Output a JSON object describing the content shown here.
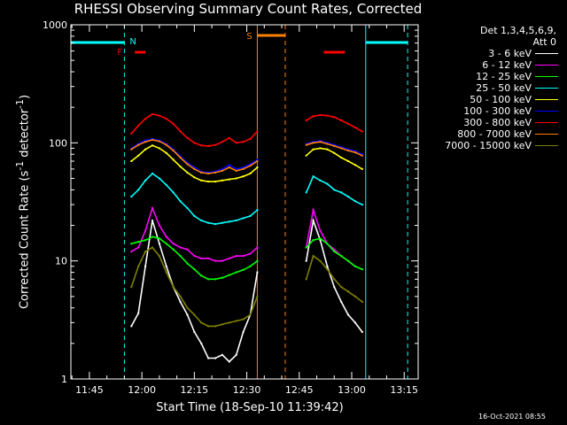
{
  "chart_data": {
    "type": "line",
    "title": "RHESSI Observing Summary Count Rates, Corrected",
    "xlabel": "Start Time (18-Sep-10 11:39:42)",
    "ylabel": "Corrected Count Rate (s^-1 detector^-1)",
    "y_scale": "log",
    "ylim": [
      1,
      1000
    ],
    "xlim": [
      "11:39:42",
      "13:19:00"
    ],
    "x_ticks": [
      "11:45",
      "12:00",
      "12:15",
      "12:30",
      "12:45",
      "13:00",
      "13:15"
    ],
    "y_ticks": [
      "1",
      "10",
      "100",
      "1000"
    ],
    "legend": {
      "header": [
        "Det 1,3,4,5,6,9,",
        "Att 0"
      ],
      "placement": "right"
    },
    "series": [
      {
        "name": "3 - 6 keV",
        "color": "#ffffff",
        "x": [
          "11:57",
          "11:59",
          "12:01",
          "12:03",
          "12:05",
          "12:07",
          "12:09",
          "12:11",
          "12:13",
          "12:15",
          "12:17",
          "12:19",
          "12:21",
          "12:23",
          "12:25",
          "12:27",
          "12:29",
          "12:31",
          "12:33",
          "12:47",
          "12:49",
          "12:51",
          "12:53",
          "12:55",
          "12:57",
          "12:59",
          "13:01",
          "13:03"
        ],
        "y": [
          2.8,
          3.6,
          9,
          22,
          14,
          9,
          6,
          4.5,
          3.5,
          2.5,
          2,
          1.5,
          1.5,
          1.6,
          1.4,
          1.6,
          2.5,
          3.5,
          8,
          10,
          22,
          15,
          9,
          6,
          4.5,
          3.5,
          3,
          2.5
        ]
      },
      {
        "name": "6 - 12 keV",
        "color": "#ff00ff",
        "x": [
          "11:57",
          "11:59",
          "12:01",
          "12:03",
          "12:05",
          "12:07",
          "12:09",
          "12:11",
          "12:13",
          "12:15",
          "12:17",
          "12:19",
          "12:21",
          "12:23",
          "12:25",
          "12:27",
          "12:29",
          "12:31",
          "12:33",
          "12:47",
          "12:49",
          "12:51",
          "12:53",
          "12:55",
          "12:57",
          "12:59",
          "13:01",
          "13:03"
        ],
        "y": [
          12,
          13,
          18,
          28,
          20,
          16,
          14,
          13,
          12.5,
          11,
          10.5,
          10.5,
          10,
          10,
          10.5,
          11,
          11,
          11.5,
          13,
          13,
          27,
          18,
          14,
          12.5,
          11,
          10,
          9,
          8.5
        ]
      },
      {
        "name": "12 - 25 keV",
        "color": "#00ff00",
        "x": [
          "11:57",
          "11:59",
          "12:01",
          "12:03",
          "12:05",
          "12:07",
          "12:09",
          "12:11",
          "12:13",
          "12:15",
          "12:17",
          "12:19",
          "12:21",
          "12:23",
          "12:25",
          "12:27",
          "12:29",
          "12:31",
          "12:33",
          "12:47",
          "12:49",
          "12:51",
          "12:53",
          "12:55",
          "12:57",
          "12:59",
          "13:01",
          "13:03"
        ],
        "y": [
          14,
          14.5,
          15,
          16,
          15.5,
          14,
          12.5,
          11,
          9.5,
          8.5,
          7.5,
          7,
          7,
          7.2,
          7.6,
          8,
          8.4,
          9,
          10,
          13,
          15,
          15.5,
          14,
          12,
          11,
          10,
          9,
          8.5
        ]
      },
      {
        "name": "25 - 50 keV",
        "color": "#00ffff",
        "x": [
          "11:57",
          "11:59",
          "12:01",
          "12:03",
          "12:05",
          "12:07",
          "12:09",
          "12:11",
          "12:13",
          "12:15",
          "12:17",
          "12:19",
          "12:21",
          "12:23",
          "12:25",
          "12:27",
          "12:29",
          "12:31",
          "12:33",
          "12:47",
          "12:49",
          "12:51",
          "12:53",
          "12:55",
          "12:57",
          "12:59",
          "13:01",
          "13:03"
        ],
        "y": [
          35,
          40,
          48,
          55,
          50,
          44,
          38,
          32,
          28,
          24,
          22,
          21,
          20.5,
          21,
          21.5,
          22,
          23,
          24,
          27,
          38,
          52,
          48,
          45,
          40,
          38,
          35,
          32,
          30
        ]
      },
      {
        "name": "50 - 100 keV",
        "color": "#ffff00",
        "x": [
          "11:57",
          "11:59",
          "12:01",
          "12:03",
          "12:05",
          "12:07",
          "12:09",
          "12:11",
          "12:13",
          "12:15",
          "12:17",
          "12:19",
          "12:21",
          "12:23",
          "12:25",
          "12:27",
          "12:29",
          "12:31",
          "12:33",
          "12:47",
          "12:49",
          "12:51",
          "12:53",
          "12:55",
          "12:57",
          "12:59",
          "13:01",
          "13:03"
        ],
        "y": [
          70,
          78,
          88,
          95,
          90,
          82,
          72,
          63,
          56,
          51,
          48,
          47,
          47,
          48,
          49,
          50,
          52,
          55,
          62,
          78,
          88,
          90,
          88,
          82,
          75,
          70,
          65,
          60
        ]
      },
      {
        "name": "100 - 300 keV",
        "color": "#0000ff",
        "x": [
          "11:57",
          "11:59",
          "12:01",
          "12:03",
          "12:05",
          "12:07",
          "12:09",
          "12:11",
          "12:13",
          "12:15",
          "12:17",
          "12:19",
          "12:21",
          "12:23",
          "12:25",
          "12:27",
          "12:29",
          "12:31",
          "12:33",
          "12:47",
          "12:49",
          "12:51",
          "12:53",
          "12:55",
          "12:57",
          "12:59",
          "13:01",
          "13:03"
        ],
        "y": [
          90,
          98,
          105,
          108,
          105,
          98,
          88,
          77,
          68,
          62,
          57,
          56,
          57,
          60,
          65,
          60,
          62,
          66,
          72,
          98,
          102,
          104,
          100,
          96,
          92,
          88,
          85,
          80
        ]
      },
      {
        "name": "300 - 800 keV",
        "color": "#ff0000",
        "x": [
          "11:57",
          "11:59",
          "12:01",
          "12:03",
          "12:05",
          "12:07",
          "12:09",
          "12:11",
          "12:13",
          "12:15",
          "12:17",
          "12:19",
          "12:21",
          "12:23",
          "12:25",
          "12:27",
          "12:29",
          "12:31",
          "12:33",
          "12:47",
          "12:49",
          "12:51",
          "12:53",
          "12:55",
          "12:57",
          "12:59",
          "13:01",
          "13:03"
        ],
        "y": [
          120,
          140,
          160,
          175,
          170,
          160,
          145,
          125,
          110,
          100,
          95,
          94,
          96,
          102,
          110,
          100,
          102,
          108,
          125,
          155,
          168,
          172,
          170,
          165,
          155,
          145,
          135,
          125
        ]
      },
      {
        "name": "800 - 7000 keV",
        "color": "#ff8000",
        "x": [
          "11:57",
          "11:59",
          "12:01",
          "12:03",
          "12:05",
          "12:07",
          "12:09",
          "12:11",
          "12:13",
          "12:15",
          "12:17",
          "12:19",
          "12:21",
          "12:23",
          "12:25",
          "12:27",
          "12:29",
          "12:31",
          "12:33",
          "12:47",
          "12:49",
          "12:51",
          "12:53",
          "12:55",
          "12:57",
          "12:59",
          "13:01",
          "13:03"
        ],
        "y": [
          88,
          96,
          102,
          106,
          103,
          96,
          86,
          75,
          66,
          60,
          56,
          55,
          56,
          58,
          62,
          58,
          60,
          64,
          70,
          96,
          100,
          102,
          98,
          94,
          90,
          86,
          83,
          78
        ]
      },
      {
        "name": "7000 - 15000 keV",
        "color": "#808000",
        "x": [
          "11:57",
          "11:59",
          "12:01",
          "12:03",
          "12:05",
          "12:07",
          "12:09",
          "12:11",
          "12:13",
          "12:15",
          "12:17",
          "12:19",
          "12:21",
          "12:23",
          "12:25",
          "12:27",
          "12:29",
          "12:31",
          "12:33",
          "12:47",
          "12:49",
          "12:51",
          "12:53",
          "12:55",
          "12:57",
          "12:59",
          "13:01",
          "13:03"
        ],
        "y": [
          6,
          9,
          12,
          13,
          11,
          8,
          6,
          5,
          4,
          3.5,
          3,
          2.8,
          2.8,
          2.9,
          3,
          3.1,
          3.2,
          3.5,
          5,
          7,
          11,
          10,
          8.5,
          7,
          6,
          5.5,
          5,
          4.5
        ]
      }
    ],
    "annotations": {
      "flag_letters": [
        {
          "text": "N",
          "color": "#00ffff"
        },
        {
          "text": "S",
          "color": "#ff8000"
        },
        {
          "text": "F",
          "color": "#ff0000"
        }
      ],
      "night_segments": [
        [
          "11:39:42",
          "11:55"
        ],
        [
          "13:04",
          "13:16"
        ]
      ],
      "saa_segments": [
        [
          "12:33",
          "12:41"
        ]
      ],
      "flare_segments": [
        [
          "11:58",
          "12:01"
        ],
        [
          "12:52",
          "12:58"
        ]
      ],
      "dashed_lines": [
        {
          "time": "11:55",
          "color": "#00ffff"
        },
        {
          "time": "12:41",
          "color": "#ff8000"
        },
        {
          "time": "13:16",
          "color": "#00ffff"
        }
      ],
      "solid_lines": [
        {
          "time": "12:33",
          "color": "#ff8000"
        },
        {
          "time": "13:04",
          "color": "#00ffff"
        }
      ]
    }
  },
  "timestamp": "16-Oct-2021 08:55"
}
